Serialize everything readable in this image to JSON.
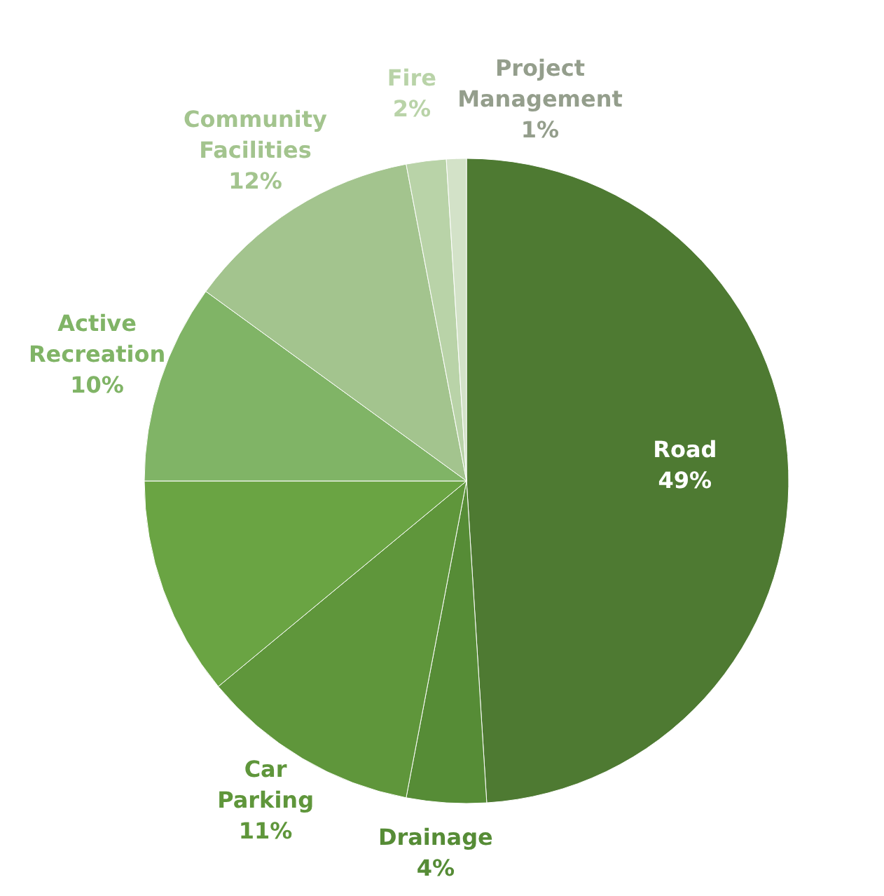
{
  "chart_data": {
    "type": "pie",
    "categories": [
      "Road",
      "Drainage",
      "Car Parking",
      null,
      "Active Recreation",
      "Community Facilities",
      "Fire",
      "Project Management"
    ],
    "values": [
      49,
      4,
      11,
      11,
      10,
      12,
      2,
      1
    ],
    "value_labels": [
      "49%",
      "4%",
      "11%",
      null,
      "10%",
      "12%",
      "2%",
      "1%"
    ],
    "colors": [
      "#4e7a32",
      "#568c36",
      "#5f963b",
      "#6aa443",
      "#80b466",
      "#a3c48e",
      "#b9d3a8",
      "#d3e2c8"
    ],
    "legend": false
  }
}
